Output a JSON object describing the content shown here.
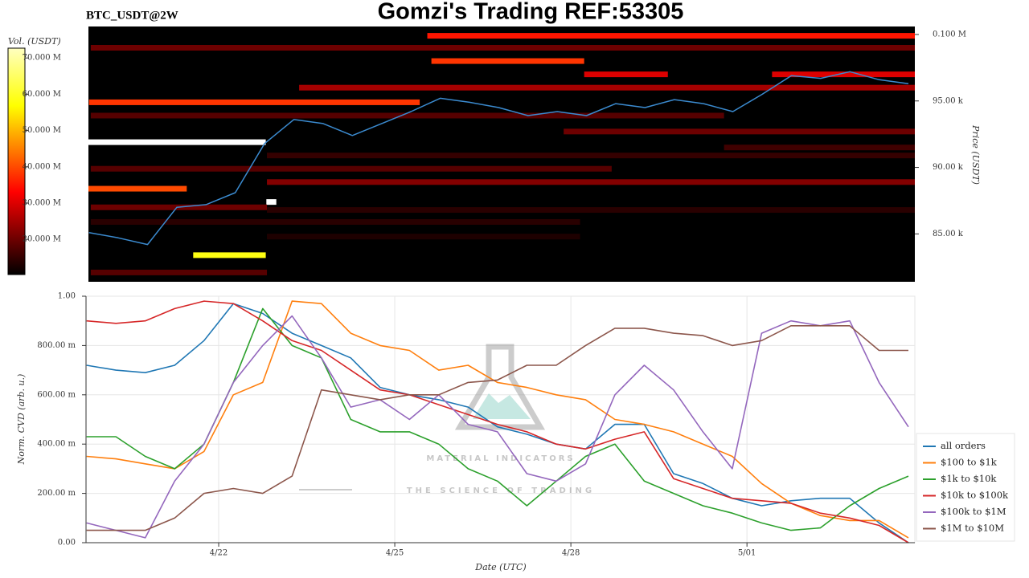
{
  "chart_data": [
    {
      "type": "heatmap",
      "title": "Gomzi's Trading REF:53305",
      "subtitle": "BTC_USDT@2W",
      "ylabel": "Price (USDT)",
      "xlim": [
        19.74,
        33.86
      ],
      "ylim": [
        81400,
        100600
      ],
      "yticks": [
        {
          "value": 85000,
          "label": "85.00 k"
        },
        {
          "value": 90000,
          "label": "90.00 k"
        },
        {
          "value": 95000,
          "label": "95.00 k"
        },
        {
          "value": 100000,
          "label": "0.100 M"
        }
      ],
      "colorbar": {
        "label": "Vol. (USDT)",
        "lim": [
          10300000,
          72700000
        ],
        "ticks": [
          {
            "value": 20000000,
            "label": "20.000 M"
          },
          {
            "value": 30000000,
            "label": "30.000 M"
          },
          {
            "value": 40000000,
            "label": "40.000 M"
          },
          {
            "value": 50000000,
            "label": "50.000 M"
          },
          {
            "value": 60000000,
            "label": "60.000 M"
          },
          {
            "value": 70000000,
            "label": "70.000 M"
          }
        ]
      },
      "cells": [
        {
          "y": 99900,
          "x0": 25.53,
          "x1": 33.86,
          "value": 35000000
        },
        {
          "y": 99000,
          "x0": 19.78,
          "x1": 33.86,
          "value": 20000000
        },
        {
          "y": 98000,
          "x0": 25.6,
          "x1": 28.21,
          "value": 38000000
        },
        {
          "y": 97000,
          "x0": 28.21,
          "x1": 29.64,
          "value": 30000000
        },
        {
          "y": 97000,
          "x0": 31.42,
          "x1": 33.86,
          "value": 30000000
        },
        {
          "y": 96000,
          "x0": 23.34,
          "x1": 33.86,
          "value": 25000000
        },
        {
          "y": 94900,
          "x0": 19.75,
          "x1": 25.4,
          "value": 38000000
        },
        {
          "y": 93900,
          "x0": 19.78,
          "x1": 30.6,
          "value": 18000000
        },
        {
          "y": 92700,
          "x0": 27.86,
          "x1": 33.86,
          "value": 20000000
        },
        {
          "y": 91900,
          "x0": 19.74,
          "x1": 22.77,
          "value": 75000000
        },
        {
          "y": 91500,
          "x0": 30.6,
          "x1": 33.86,
          "value": 16000000
        },
        {
          "y": 90900,
          "x0": 22.79,
          "x1": 33.86,
          "value": 15000000
        },
        {
          "y": 89900,
          "x0": 19.78,
          "x1": 28.68,
          "value": 18000000
        },
        {
          "y": 88900,
          "x0": 22.79,
          "x1": 33.86,
          "value": 22000000
        },
        {
          "y": 88400,
          "x0": 19.74,
          "x1": 21.42,
          "value": 40000000
        },
        {
          "y": 87400,
          "x0": 22.78,
          "x1": 22.95,
          "value": 75000000
        },
        {
          "y": 87000,
          "x0": 19.78,
          "x1": 22.79,
          "value": 20000000
        },
        {
          "y": 86800,
          "x0": 22.79,
          "x1": 33.86,
          "value": 14000000
        },
        {
          "y": 85900,
          "x0": 19.78,
          "x1": 28.14,
          "value": 14000000
        },
        {
          "y": 84800,
          "x0": 22.79,
          "x1": 28.14,
          "value": 13000000
        },
        {
          "y": 83400,
          "x0": 21.53,
          "x1": 22.77,
          "value": 58000000
        },
        {
          "y": 82100,
          "x0": 19.78,
          "x1": 22.79,
          "value": 18000000
        }
      ],
      "x": [
        19.75,
        20.25,
        20.75,
        21.25,
        21.75,
        22.25,
        22.75,
        23.25,
        23.75,
        24.25,
        24.75,
        25.25,
        25.75,
        26.25,
        26.75,
        27.25,
        27.75,
        28.25,
        28.75,
        29.25,
        29.75,
        30.25,
        30.75,
        31.25,
        31.75,
        32.25,
        32.75,
        33.25,
        33.75
      ],
      "series": [
        {
          "color": "#3b8bd0",
          "values": [
            85100,
            84700,
            84200,
            87000,
            87200,
            88100,
            91800,
            93600,
            93300,
            92400,
            93300,
            94200,
            95200,
            94900,
            94500,
            93900,
            94200,
            93900,
            94800,
            94500,
            95100,
            94800,
            94200,
            95500,
            96900,
            96700,
            97200,
            96600,
            96300
          ]
        }
      ]
    },
    {
      "type": "line",
      "xlabel": "Date (UTC)",
      "ylabel": "Norm. CVD (arb. u.)",
      "grid": true,
      "legend": "lower right",
      "annotations": [
        "MATERIAL INDICATORS",
        "THE SCIENCE OF TRADING"
      ],
      "xlim": [
        19.74,
        33.86
      ],
      "ylim": [
        0,
        1
      ],
      "xticks": [
        {
          "value": 22,
          "label": "4/22"
        },
        {
          "value": 25,
          "label": "4/25"
        },
        {
          "value": 28,
          "label": "4/28"
        },
        {
          "value": 31,
          "label": "5/01"
        }
      ],
      "yticks": [
        {
          "value": 0,
          "label": "0.00"
        },
        {
          "value": 0.2,
          "label": "200.00 m"
        },
        {
          "value": 0.4,
          "label": "400.00 m"
        },
        {
          "value": 0.6,
          "label": "600.00 m"
        },
        {
          "value": 0.8,
          "label": "800.00 m"
        },
        {
          "value": 1,
          "label": "1.00"
        }
      ],
      "x": [
        19.75,
        20.25,
        20.75,
        21.25,
        21.75,
        22.25,
        22.75,
        23.25,
        23.75,
        24.25,
        24.75,
        25.25,
        25.75,
        26.25,
        26.75,
        27.25,
        27.75,
        28.25,
        28.75,
        29.25,
        29.75,
        30.25,
        30.75,
        31.25,
        31.75,
        32.25,
        32.75,
        33.25,
        33.75
      ],
      "series": [
        {
          "name": "all orders",
          "color": "#1f77b4",
          "values": [
            0.72,
            0.7,
            0.69,
            0.72,
            0.82,
            0.97,
            0.93,
            0.85,
            0.8,
            0.75,
            0.63,
            0.6,
            0.58,
            0.55,
            0.47,
            0.44,
            0.4,
            0.38,
            0.48,
            0.48,
            0.28,
            0.24,
            0.18,
            0.15,
            0.17,
            0.18,
            0.18,
            0.08,
            0.0
          ]
        },
        {
          "name": "$100 to $1k",
          "color": "#ff7f0e",
          "values": [
            0.35,
            0.34,
            0.32,
            0.3,
            0.37,
            0.6,
            0.65,
            0.98,
            0.97,
            0.85,
            0.8,
            0.78,
            0.7,
            0.72,
            0.65,
            0.63,
            0.6,
            0.58,
            0.5,
            0.48,
            0.45,
            0.4,
            0.35,
            0.24,
            0.16,
            0.11,
            0.09,
            0.09,
            0.02
          ]
        },
        {
          "name": "$1k to $10k",
          "color": "#2ca02c",
          "values": [
            0.43,
            0.43,
            0.35,
            0.3,
            0.4,
            0.65,
            0.95,
            0.8,
            0.75,
            0.5,
            0.45,
            0.45,
            0.4,
            0.3,
            0.25,
            0.15,
            0.25,
            0.35,
            0.4,
            0.25,
            0.2,
            0.15,
            0.12,
            0.08,
            0.05,
            0.06,
            0.15,
            0.22,
            0.27
          ]
        },
        {
          "name": "$10k to $100k",
          "color": "#d62728",
          "values": [
            0.9,
            0.89,
            0.9,
            0.95,
            0.98,
            0.97,
            0.9,
            0.82,
            0.78,
            0.7,
            0.62,
            0.6,
            0.56,
            0.52,
            0.48,
            0.45,
            0.4,
            0.38,
            0.42,
            0.45,
            0.26,
            0.22,
            0.18,
            0.17,
            0.16,
            0.12,
            0.1,
            0.07,
            0.0
          ]
        },
        {
          "name": "$100k to $1M",
          "color": "#9467bd",
          "values": [
            0.08,
            0.05,
            0.02,
            0.25,
            0.4,
            0.65,
            0.8,
            0.92,
            0.75,
            0.55,
            0.58,
            0.5,
            0.6,
            0.48,
            0.45,
            0.28,
            0.25,
            0.32,
            0.6,
            0.72,
            0.62,
            0.45,
            0.3,
            0.85,
            0.9,
            0.88,
            0.9,
            0.65,
            0.47
          ]
        },
        {
          "name": "$1M to $10M",
          "color": "#8c564b",
          "values": [
            0.05,
            0.05,
            0.05,
            0.1,
            0.2,
            0.22,
            0.2,
            0.27,
            0.62,
            0.6,
            0.58,
            0.6,
            0.6,
            0.65,
            0.66,
            0.72,
            0.72,
            0.8,
            0.87,
            0.87,
            0.85,
            0.84,
            0.8,
            0.82,
            0.88,
            0.88,
            0.88,
            0.78,
            0.78
          ]
        }
      ]
    }
  ]
}
